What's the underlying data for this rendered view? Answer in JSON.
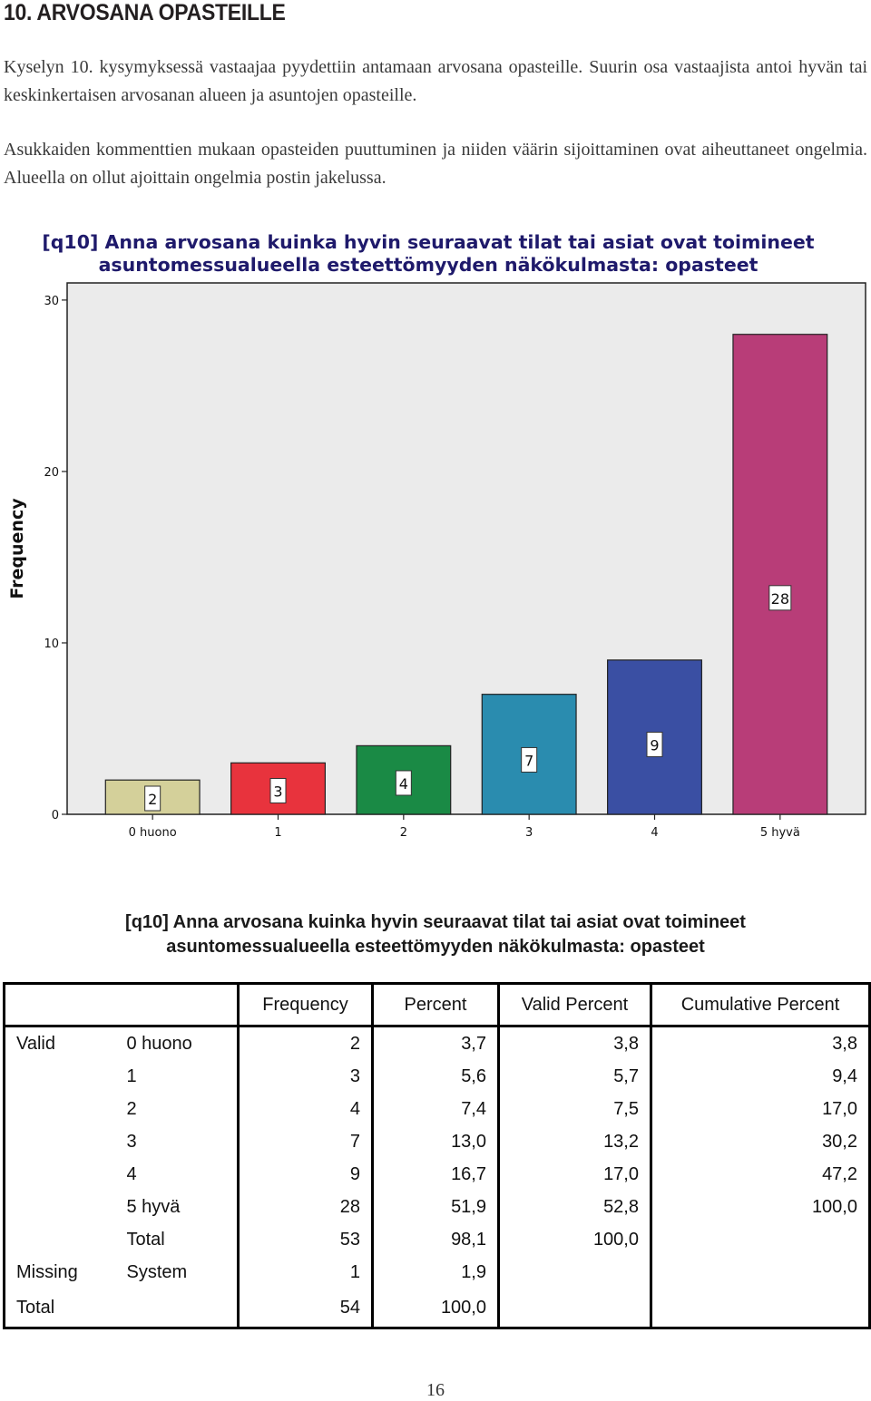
{
  "section": {
    "heading": "10. ARVOSANA OPASTEILLE",
    "paragraph1": "Kyselyn 10. kysymyksessä vastaajaa pyydettiin antamaan arvosana opasteille. Suurin osa vastaajista antoi hyvän tai keskinkertaisen arvosanan alueen ja asuntojen opasteille.",
    "paragraph2": "Asukkaiden kommenttien mukaan opasteiden puuttuminen ja niiden väärin sijoittaminen ovat aiheuttaneet ongelmia. Alueella on ollut ajoittain ongelmia postin jakelussa."
  },
  "chart_data": {
    "type": "bar",
    "title_line1": "[q10] Anna arvosana kuinka hyvin seuraavat tilat tai asiat ovat toimineet",
    "title_line2": "asuntomessualueella esteettömyyden näkökulmasta: opasteet",
    "ylabel": "Frequency",
    "xlabel": "",
    "categories": [
      "0 huono",
      "1",
      "2",
      "3",
      "4",
      "5 hyvä"
    ],
    "values": [
      2,
      3,
      4,
      7,
      9,
      28
    ],
    "ylim": [
      0,
      31
    ],
    "yticks": [
      0,
      10,
      20,
      30
    ],
    "bar_colors": [
      "#d4d09a",
      "#e8333d",
      "#1a8a45",
      "#2a8caf",
      "#3a4fa3",
      "#b83d78"
    ],
    "plot_background": "#ebebeb",
    "data_labels": true,
    "grid": false,
    "legend": "none"
  },
  "table": {
    "title_line1": "[q10] Anna arvosana kuinka hyvin seuraavat tilat tai asiat ovat toimineet",
    "title_line2": "asuntomessualueella esteettömyyden näkökulmasta: opasteet",
    "headers": [
      "Frequency",
      "Percent",
      "Valid Percent",
      "Cumulative Percent"
    ],
    "rows": [
      {
        "group": "Valid",
        "label": "0 huono",
        "frequency": "2",
        "percent": "3,7",
        "valid": "3,8",
        "cumulative": "3,8"
      },
      {
        "group": "",
        "label": "1",
        "frequency": "3",
        "percent": "5,6",
        "valid": "5,7",
        "cumulative": "9,4"
      },
      {
        "group": "",
        "label": "2",
        "frequency": "4",
        "percent": "7,4",
        "valid": "7,5",
        "cumulative": "17,0"
      },
      {
        "group": "",
        "label": "3",
        "frequency": "7",
        "percent": "13,0",
        "valid": "13,2",
        "cumulative": "30,2"
      },
      {
        "group": "",
        "label": "4",
        "frequency": "9",
        "percent": "16,7",
        "valid": "17,0",
        "cumulative": "47,2"
      },
      {
        "group": "",
        "label": "5 hyvä",
        "frequency": "28",
        "percent": "51,9",
        "valid": "52,8",
        "cumulative": "100,0"
      },
      {
        "group": "",
        "label": "Total",
        "frequency": "53",
        "percent": "98,1",
        "valid": "100,0",
        "cumulative": ""
      },
      {
        "group": "Missing",
        "label": "System",
        "frequency": "1",
        "percent": "1,9",
        "valid": "",
        "cumulative": ""
      },
      {
        "group": "Total",
        "label": "",
        "frequency": "54",
        "percent": "100,0",
        "valid": "",
        "cumulative": ""
      }
    ]
  },
  "page_number": "16"
}
